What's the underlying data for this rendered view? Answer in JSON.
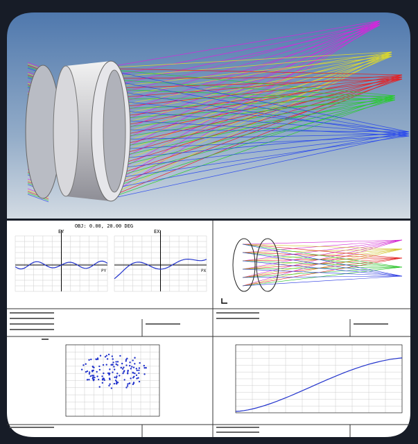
{
  "fan_plot": {
    "title": "OBJ: 0.00, 20.00 DEG",
    "left_axis": "EY",
    "right_axis": "EX",
    "left_pupil": "PY",
    "right_pupil": "PX"
  }
}
